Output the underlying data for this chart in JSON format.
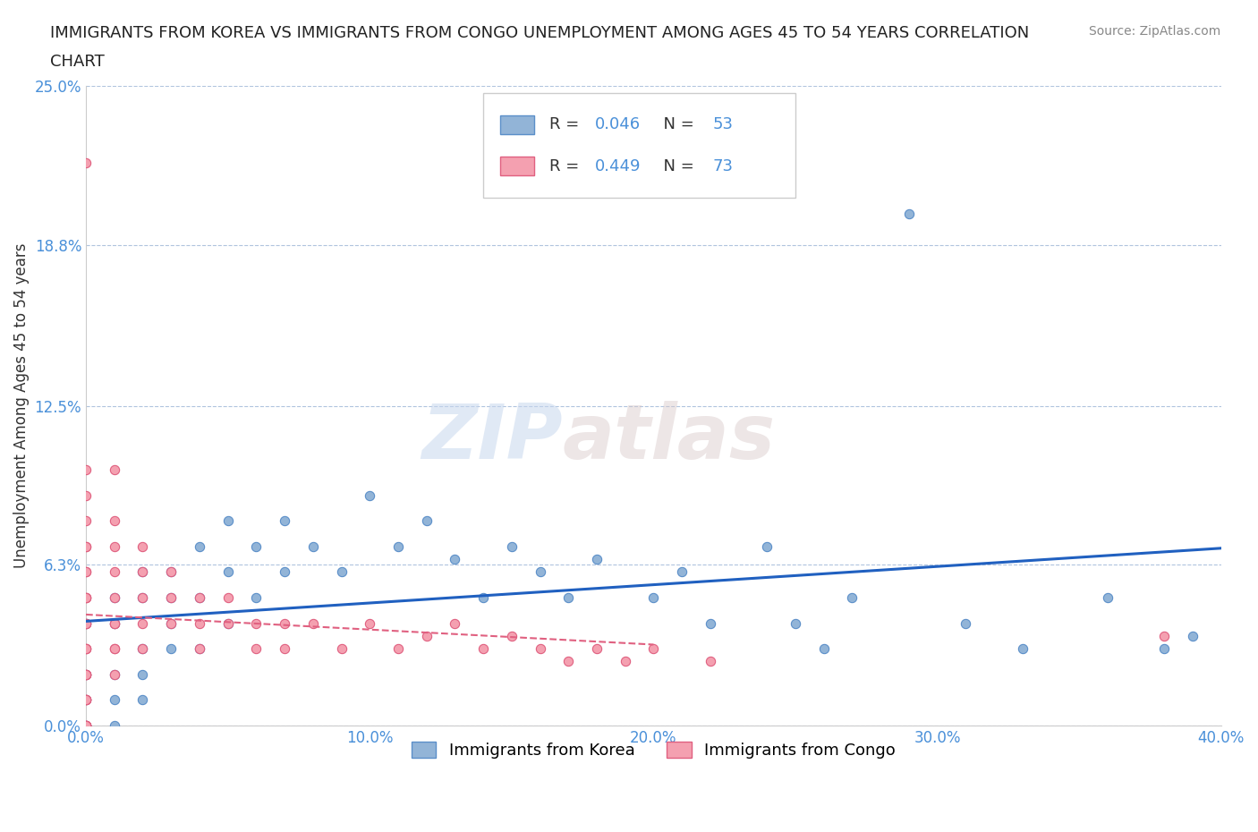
{
  "title_line1": "IMMIGRANTS FROM KOREA VS IMMIGRANTS FROM CONGO UNEMPLOYMENT AMONG AGES 45 TO 54 YEARS CORRELATION",
  "title_line2": "CHART",
  "source": "Source: ZipAtlas.com",
  "ylabel": "Unemployment Among Ages 45 to 54 years",
  "xlim": [
    0.0,
    0.4
  ],
  "ylim": [
    0.0,
    0.25
  ],
  "yticks": [
    0.0,
    0.063,
    0.125,
    0.188,
    0.25
  ],
  "ytick_labels": [
    "0.0%",
    "6.3%",
    "12.5%",
    "18.8%",
    "25.0%"
  ],
  "xticks": [
    0.0,
    0.1,
    0.2,
    0.3,
    0.4
  ],
  "xtick_labels": [
    "0.0%",
    "10.0%",
    "20.0%",
    "30.0%",
    "40.0%"
  ],
  "korea_color": "#92b4d7",
  "congo_color": "#f4a0b0",
  "korea_edge": "#5b8fc9",
  "congo_edge": "#e06080",
  "trendline_korea_color": "#2060c0",
  "trendline_congo_color": "#e06080",
  "R_korea": 0.046,
  "N_korea": 53,
  "R_congo": 0.449,
  "N_congo": 73,
  "watermark_zip": "ZIP",
  "watermark_atlas": "atlas",
  "background_color": "#ffffff",
  "grid_color": "#b0c4de",
  "korea_scatter_x": [
    0.0,
    0.0,
    0.0,
    0.0,
    0.0,
    0.01,
    0.01,
    0.01,
    0.01,
    0.01,
    0.02,
    0.02,
    0.02,
    0.02,
    0.02,
    0.03,
    0.03,
    0.03,
    0.03,
    0.04,
    0.04,
    0.04,
    0.05,
    0.05,
    0.05,
    0.06,
    0.06,
    0.07,
    0.07,
    0.08,
    0.09,
    0.1,
    0.11,
    0.12,
    0.13,
    0.14,
    0.15,
    0.16,
    0.17,
    0.18,
    0.2,
    0.21,
    0.22,
    0.24,
    0.25,
    0.26,
    0.27,
    0.29,
    0.31,
    0.33,
    0.36,
    0.38,
    0.39
  ],
  "korea_scatter_y": [
    0.04,
    0.02,
    0.01,
    0.0,
    0.0,
    0.05,
    0.04,
    0.02,
    0.01,
    0.0,
    0.06,
    0.05,
    0.03,
    0.02,
    0.01,
    0.06,
    0.05,
    0.04,
    0.03,
    0.07,
    0.05,
    0.03,
    0.08,
    0.06,
    0.04,
    0.07,
    0.05,
    0.08,
    0.06,
    0.07,
    0.06,
    0.09,
    0.07,
    0.08,
    0.065,
    0.05,
    0.07,
    0.06,
    0.05,
    0.065,
    0.05,
    0.06,
    0.04,
    0.07,
    0.04,
    0.03,
    0.05,
    0.2,
    0.04,
    0.03,
    0.05,
    0.03,
    0.035
  ],
  "congo_scatter_x": [
    0.0,
    0.0,
    0.0,
    0.0,
    0.0,
    0.0,
    0.0,
    0.0,
    0.0,
    0.0,
    0.0,
    0.0,
    0.0,
    0.0,
    0.0,
    0.0,
    0.0,
    0.0,
    0.0,
    0.0,
    0.0,
    0.0,
    0.0,
    0.0,
    0.0,
    0.0,
    0.0,
    0.0,
    0.0,
    0.0,
    0.0,
    0.01,
    0.01,
    0.01,
    0.01,
    0.01,
    0.01,
    0.01,
    0.01,
    0.01,
    0.01,
    0.02,
    0.02,
    0.02,
    0.02,
    0.02,
    0.03,
    0.03,
    0.03,
    0.04,
    0.04,
    0.04,
    0.05,
    0.05,
    0.06,
    0.06,
    0.07,
    0.07,
    0.08,
    0.09,
    0.1,
    0.11,
    0.12,
    0.13,
    0.14,
    0.15,
    0.16,
    0.17,
    0.18,
    0.19,
    0.2,
    0.22,
    0.38
  ],
  "congo_scatter_y": [
    0.22,
    0.1,
    0.09,
    0.08,
    0.07,
    0.07,
    0.06,
    0.06,
    0.05,
    0.05,
    0.05,
    0.04,
    0.04,
    0.04,
    0.03,
    0.03,
    0.03,
    0.02,
    0.02,
    0.02,
    0.02,
    0.01,
    0.01,
    0.01,
    0.01,
    0.0,
    0.0,
    0.0,
    0.0,
    0.0,
    0.0,
    0.1,
    0.08,
    0.07,
    0.06,
    0.05,
    0.04,
    0.04,
    0.03,
    0.03,
    0.02,
    0.07,
    0.06,
    0.05,
    0.04,
    0.03,
    0.06,
    0.05,
    0.04,
    0.05,
    0.04,
    0.03,
    0.05,
    0.04,
    0.04,
    0.03,
    0.04,
    0.03,
    0.04,
    0.03,
    0.04,
    0.03,
    0.035,
    0.04,
    0.03,
    0.035,
    0.03,
    0.025,
    0.03,
    0.025,
    0.03,
    0.025,
    0.035
  ]
}
